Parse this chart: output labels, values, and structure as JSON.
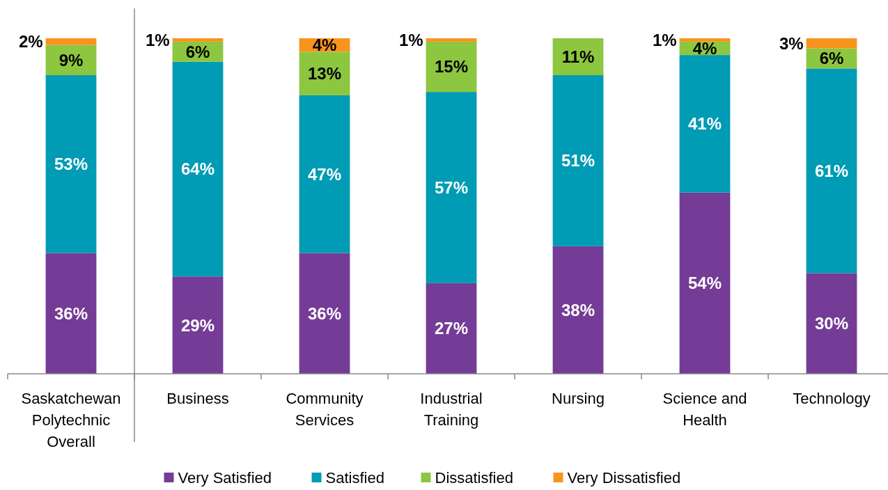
{
  "chart_data": {
    "type": "bar",
    "stacked": true,
    "categories": [
      "Saskatchewan Polytechnic Overall",
      "Business",
      "Community Services",
      "Industrial Training",
      "Nursing",
      "Science and Health",
      "Technology"
    ],
    "ylim": [
      0,
      100
    ],
    "tick_labels": "x",
    "legend": "bottom",
    "series": [
      {
        "name": "Very Satisfied",
        "color": "#743c96",
        "values": [
          36,
          29,
          36,
          27,
          38,
          54,
          30
        ],
        "value_labels": [
          "36%",
          "29%",
          "36%",
          "27%",
          "38%",
          "54%",
          "30%"
        ]
      },
      {
        "name": "Satisfied",
        "color": "#009bb4",
        "values": [
          53,
          64,
          47,
          57,
          51,
          41,
          61
        ],
        "value_labels": [
          "53%",
          "64%",
          "47%",
          "57%",
          "51%",
          "41%",
          "61%"
        ]
      },
      {
        "name": "Dissatisfied",
        "color": "#8dc63f",
        "values": [
          9,
          6,
          13,
          15,
          11,
          4,
          6
        ],
        "value_labels": [
          "9%",
          "6%",
          "13%",
          "15%",
          "11%",
          "4%",
          "6%"
        ]
      },
      {
        "name": "Very Dissatisfied",
        "color": "#f7941d",
        "values": [
          2,
          1,
          4,
          1,
          null,
          1,
          3
        ],
        "value_labels": [
          "2%",
          "1%",
          "4%",
          "1%",
          null,
          "1%",
          "3%"
        ]
      }
    ]
  }
}
